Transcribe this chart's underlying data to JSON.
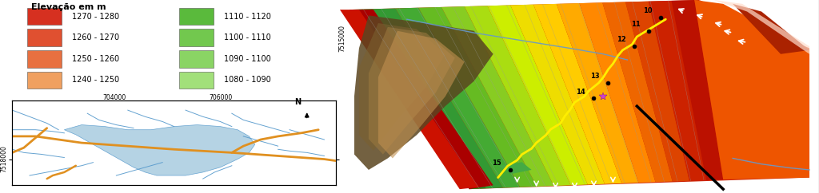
{
  "legend_title": "Elevação em m",
  "legend_items_left": [
    {
      "label": "1270 - 1280",
      "color": "#d63020"
    },
    {
      "label": "1260 - 1270",
      "color": "#e05030"
    },
    {
      "label": "1250 - 1260",
      "color": "#e87040"
    },
    {
      "label": "1240 - 1250",
      "color": "#f0a060"
    }
  ],
  "legend_items_right": [
    {
      "label": "1110 - 1120",
      "color": "#5aba3c"
    },
    {
      "label": "1100 - 1110",
      "color": "#72c84e"
    },
    {
      "label": "1090 - 1100",
      "color": "#8ad464"
    },
    {
      "label": "1080 - 1090",
      "color": "#a2e07a"
    }
  ],
  "road_color": "#e09020",
  "river_color": "#5599cc",
  "water_body_color": "#a8cce0",
  "yellow_path_color": "#ffee00",
  "figure_width": 10.24,
  "figure_height": 2.42,
  "font_size_legend": 7,
  "font_size_ticks": 5.5
}
